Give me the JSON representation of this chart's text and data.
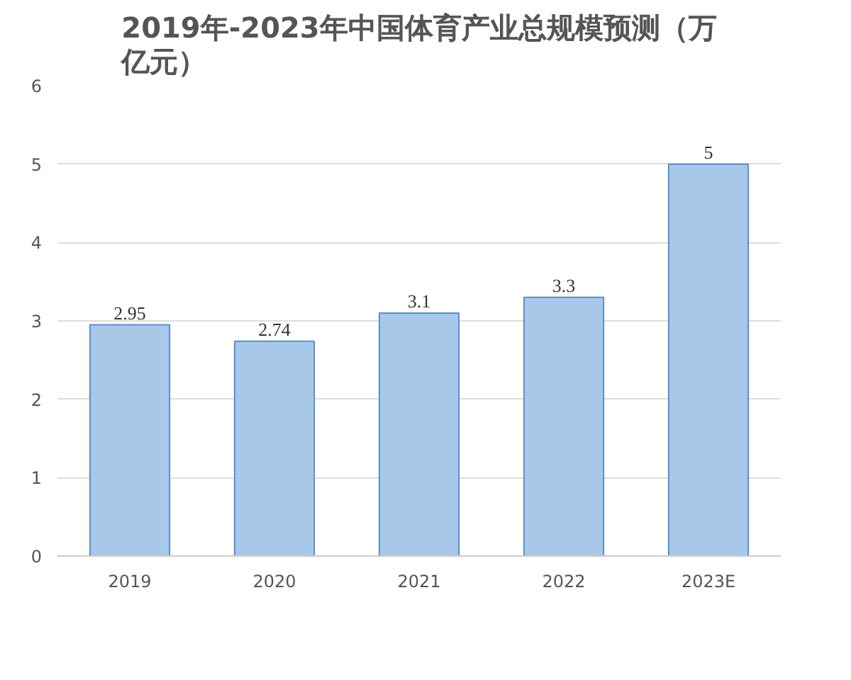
{
  "chart_data": {
    "type": "bar",
    "title": "2019年-2023年中国体育产业总规模预测（万亿元）",
    "categories": [
      "2019",
      "2020",
      "2021",
      "2022",
      "2023E"
    ],
    "values": [
      2.95,
      2.74,
      3.1,
      3.3,
      5
    ],
    "color": "#a8c8ea",
    "ylim": [
      0,
      6
    ],
    "yticks": [
      0,
      1,
      2,
      3,
      4,
      5,
      6
    ],
    "grid": "y",
    "data_labels": true
  }
}
